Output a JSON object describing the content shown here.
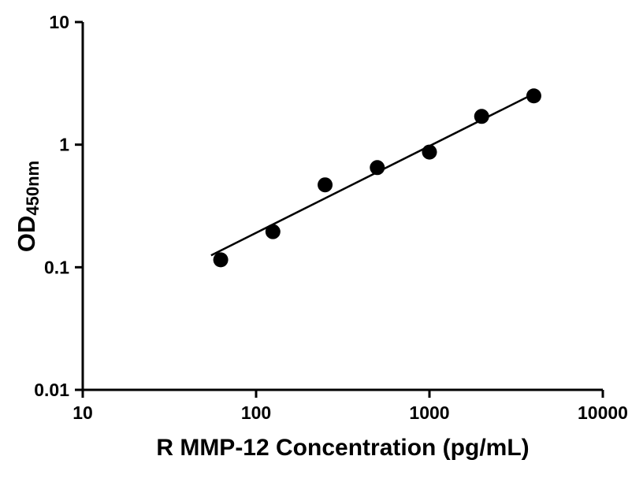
{
  "chart_data": {
    "type": "scatter",
    "title": "",
    "xlabel": "R MMP-12 Concentration (pg/mL)",
    "ylabel_base": "OD",
    "ylabel_sub": "450nm",
    "x_scale": "log",
    "y_scale": "log",
    "xlim": [
      10,
      10000
    ],
    "ylim": [
      0.01,
      10
    ],
    "x_ticks": [
      10,
      100,
      1000,
      10000
    ],
    "x_tick_labels": [
      "10",
      "100",
      "1000",
      "10000"
    ],
    "y_ticks": [
      0.01,
      0.1,
      1,
      10
    ],
    "y_tick_labels": [
      "0.01",
      "0.1",
      "1",
      "10"
    ],
    "grid": false,
    "legend_position": "none",
    "series": [
      {
        "name": "fit-line",
        "type": "line",
        "x": [
          55,
          4000
        ],
        "y": [
          0.125,
          2.6
        ],
        "color": "#000000"
      },
      {
        "name": "standard-curve-points",
        "type": "scatter",
        "marker": "circle",
        "x": [
          62.5,
          125,
          250,
          500,
          1000,
          2000,
          4000
        ],
        "y": [
          0.115,
          0.195,
          0.47,
          0.65,
          0.87,
          1.7,
          2.5
        ],
        "color": "#000000"
      }
    ]
  },
  "colors": {
    "background": "#ffffff",
    "axis": "#000000",
    "marker": "#000000"
  }
}
